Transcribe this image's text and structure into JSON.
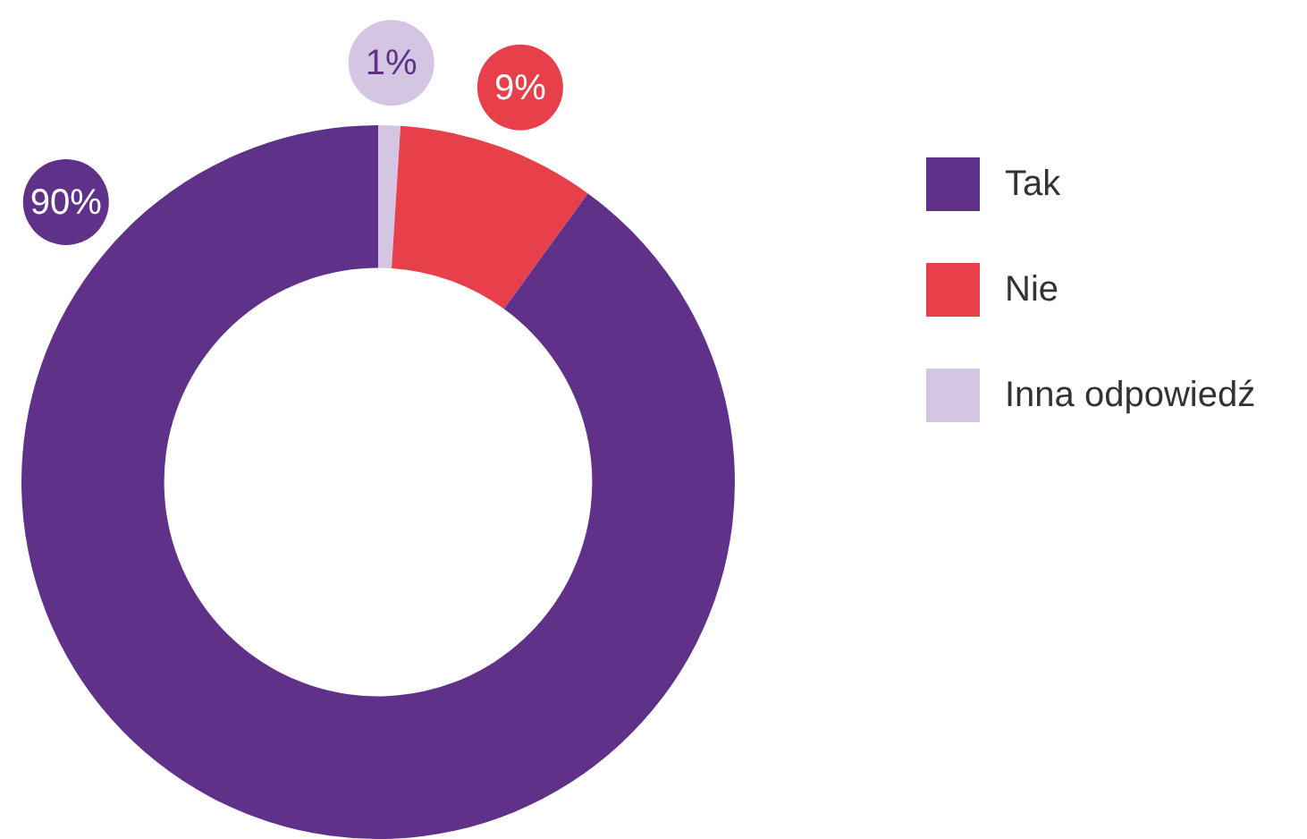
{
  "chart_data": {
    "type": "donut",
    "categories": [
      "Tak",
      "Nie",
      "Inna odpowiedź"
    ],
    "values": [
      90,
      9,
      1
    ],
    "colors": [
      "#5f3189",
      "#e8404b",
      "#d4c5e2"
    ],
    "legend": "right",
    "value_labels": [
      "90%",
      "9%",
      "1%"
    ]
  }
}
